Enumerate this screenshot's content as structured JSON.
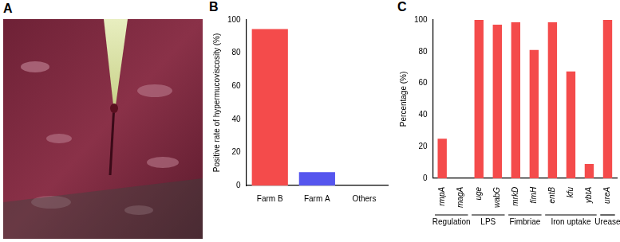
{
  "panel_labels": [
    "A",
    "B",
    "C"
  ],
  "chart_data": [
    {
      "type": "bar",
      "categories": [
        "Farm B",
        "Farm A",
        "Others"
      ],
      "values": [
        94.5,
        8,
        0
      ],
      "colors": [
        "#f44b4b",
        "#5555ee",
        "#5555ee"
      ],
      "ylabel": "Positive rate of hypermucoviscosity (%)",
      "ylim": [
        0,
        100
      ],
      "yticks": [
        0,
        20,
        40,
        60,
        80,
        100
      ],
      "grid": false
    },
    {
      "type": "bar",
      "categories": [
        "rmpA",
        "magA",
        "uge",
        "wabG",
        "mrkD",
        "fimH",
        "entB",
        "kfu",
        "ybtA",
        "ureA"
      ],
      "values": [
        25,
        0,
        100,
        97,
        98.5,
        81,
        98.5,
        67.5,
        9,
        100
      ],
      "color": "#f44b4b",
      "ylabel": "Percentage (%)",
      "ylim": [
        0,
        100
      ],
      "yticks": [
        0,
        20,
        40,
        60,
        80,
        100
      ],
      "grid": false,
      "groups": [
        {
          "name": "Regulation",
          "members": [
            "rmpA",
            "magA"
          ]
        },
        {
          "name": "LPS",
          "members": [
            "uge",
            "wabG"
          ]
        },
        {
          "name": "Fimbriae",
          "members": [
            "mrkD",
            "fimH"
          ]
        },
        {
          "name": "Iron uptake",
          "members": [
            "entB",
            "kfu",
            "ybtA"
          ]
        },
        {
          "name": "Urease",
          "members": [
            "ureA"
          ]
        }
      ]
    }
  ]
}
